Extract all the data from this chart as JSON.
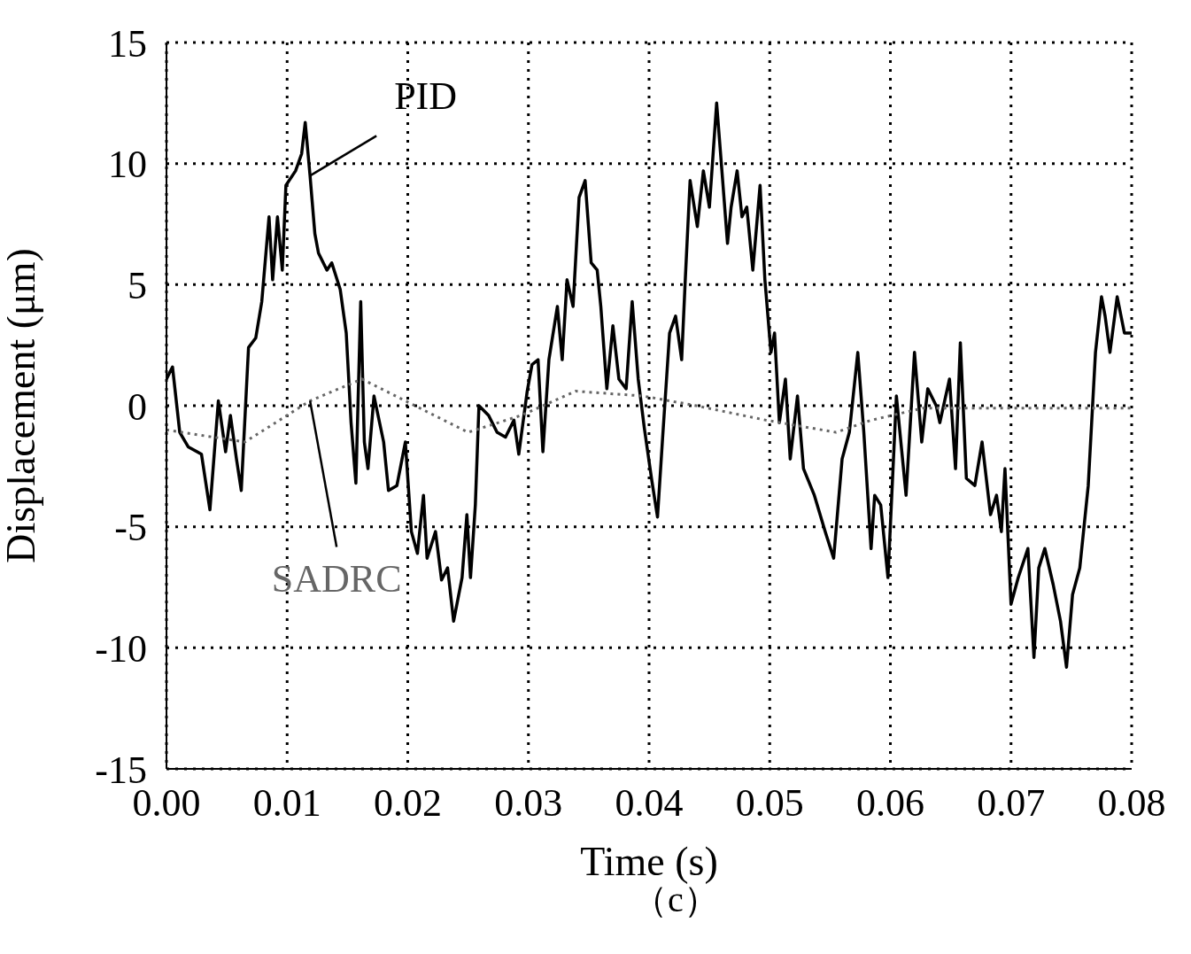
{
  "chart_data": {
    "type": "line",
    "xlabel": "Time (s)",
    "ylabel": "Displacement (μm)",
    "xlim": [
      0,
      0.08
    ],
    "xticks": [
      {
        "value": 0,
        "label": "0.00"
      },
      {
        "value": 0.01,
        "label": "0.01"
      },
      {
        "value": 0.02,
        "label": "0.02"
      },
      {
        "value": 0.03,
        "label": "0.03"
      },
      {
        "value": 0.04,
        "label": "0.04"
      },
      {
        "value": 0.05,
        "label": "0.05"
      },
      {
        "value": 0.06,
        "label": "0.06"
      },
      {
        "value": 0.07,
        "label": "0.07"
      },
      {
        "value": 0.08,
        "label": "0.08"
      }
    ],
    "ylim": [
      -15,
      15
    ],
    "yticks": [
      15,
      10,
      5,
      0,
      -5,
      -10,
      -15
    ],
    "grid": true,
    "marker": "none",
    "annotations": [
      "（c）"
    ],
    "series": [
      {
        "name": "PID",
        "color": "#000000",
        "line_style": "solid",
        "x": [
          0,
          0.0005,
          0.0011,
          0.0018,
          0.0029,
          0.0036,
          0.0043,
          0.0049,
          0.0053,
          0.0058,
          0.0062,
          0.0068,
          0.0074,
          0.0079,
          0.0085,
          0.0088,
          0.0092,
          0.0096,
          0.0099,
          0.0107,
          0.0112,
          0.0115,
          0.0119,
          0.0123,
          0.0126,
          0.0133,
          0.0137,
          0.0144,
          0.0149,
          0.0153,
          0.0157,
          0.0161,
          0.0164,
          0.0167,
          0.0172,
          0.018,
          0.0184,
          0.0191,
          0.0198,
          0.0203,
          0.0208,
          0.0213,
          0.0216,
          0.0223,
          0.0228,
          0.0233,
          0.0238,
          0.0245,
          0.0249,
          0.0252,
          0.0256,
          0.0259,
          0.0267,
          0.0274,
          0.0281,
          0.0288,
          0.0292,
          0.0299,
          0.0303,
          0.0308,
          0.0312,
          0.0317,
          0.0324,
          0.0328,
          0.0332,
          0.0337,
          0.0342,
          0.0347,
          0.0352,
          0.0357,
          0.036,
          0.0365,
          0.037,
          0.0375,
          0.0381,
          0.0386,
          0.0391,
          0.0396,
          0.0402,
          0.0407,
          0.0411,
          0.0417,
          0.0422,
          0.0427,
          0.043,
          0.0434,
          0.044,
          0.0445,
          0.045,
          0.0456,
          0.0461,
          0.0465,
          0.0468,
          0.0473,
          0.0477,
          0.0481,
          0.0486,
          0.0492,
          0.0496,
          0.0501,
          0.0504,
          0.0508,
          0.0513,
          0.0517,
          0.0523,
          0.0528,
          0.0537,
          0.0546,
          0.0553,
          0.056,
          0.0566,
          0.0573,
          0.0578,
          0.0584,
          0.0587,
          0.0592,
          0.0598,
          0.0605,
          0.0613,
          0.062,
          0.0626,
          0.0631,
          0.0638,
          0.0641,
          0.0649,
          0.0654,
          0.0658,
          0.0663,
          0.067,
          0.0676,
          0.0683,
          0.0688,
          0.0692,
          0.0695,
          0.07,
          0.0706,
          0.0714,
          0.0719,
          0.0723,
          0.0728,
          0.0735,
          0.0741,
          0.0746,
          0.0751,
          0.0757,
          0.0764,
          0.077,
          0.0775,
          0.0778,
          0.0782,
          0.0788,
          0.0794,
          0.08
        ],
        "values": [
          1.1,
          1.6,
          -1.1,
          -1.7,
          -2.0,
          -4.3,
          0.2,
          -1.9,
          -0.4,
          -2.2,
          -3.5,
          2.4,
          2.8,
          4.3,
          7.8,
          5.2,
          7.8,
          5.6,
          9.1,
          9.7,
          10.4,
          11.7,
          9.5,
          7.1,
          6.3,
          5.6,
          5.9,
          4.8,
          3.0,
          -0.7,
          -3.2,
          4.3,
          -1.5,
          -2.6,
          0.4,
          -1.5,
          -3.5,
          -3.3,
          -1.5,
          -5.2,
          -6.1,
          -3.7,
          -6.3,
          -5.2,
          -7.2,
          -6.7,
          -8.9,
          -7.1,
          -4.5,
          -7.1,
          -4.1,
          0,
          -0.4,
          -1.1,
          -1.3,
          -0.6,
          -2.0,
          0.6,
          1.7,
          1.9,
          -1.9,
          1.9,
          4.1,
          1.9,
          5.2,
          4.1,
          8.6,
          9.3,
          5.9,
          5.6,
          4.1,
          0.7,
          3.3,
          1.1,
          0.7,
          4.3,
          1.1,
          -0.9,
          -3.0,
          -4.6,
          -1.5,
          3.0,
          3.7,
          1.9,
          5.2,
          9.3,
          7.4,
          9.7,
          8.2,
          12.5,
          9.3,
          6.7,
          8.2,
          9.7,
          7.8,
          8.2,
          5.6,
          9.1,
          5.2,
          2.2,
          3.0,
          -0.7,
          1.1,
          -2.2,
          0.4,
          -2.6,
          -3.7,
          -5.2,
          -6.3,
          -2.2,
          -1.1,
          2.2,
          -1.1,
          -5.9,
          -3.7,
          -4.1,
          -7.1,
          0.4,
          -3.7,
          2.2,
          -1.5,
          0.7,
          0,
          -0.7,
          1.1,
          -2.6,
          2.6,
          -3.0,
          -3.3,
          -1.5,
          -4.5,
          -3.7,
          -5.2,
          -2.6,
          -8.2,
          -7.1,
          -5.9,
          -10.4,
          -6.7,
          -5.9,
          -7.4,
          -8.9,
          -10.8,
          -7.8,
          -6.7,
          -3.3,
          2.2,
          4.5,
          3.7,
          2.2,
          4.5,
          3.0,
          3.0
        ]
      },
      {
        "name": "SADRC",
        "color": "#666666",
        "line_style": "dotted",
        "x": [
          0,
          0.0065,
          0.0119,
          0.0162,
          0.0198,
          0.025,
          0.0294,
          0.0339,
          0.0395,
          0.0439,
          0.0497,
          0.0555,
          0.0584,
          0.0627,
          0.0699,
          0.08
        ],
        "values": [
          -1.0,
          -1.5,
          0.2,
          1.1,
          0.2,
          -1.1,
          -0.4,
          0.6,
          0.4,
          0,
          -0.6,
          -1.1,
          -0.6,
          -0.1,
          -0.1,
          -0.1
        ]
      }
    ]
  }
}
